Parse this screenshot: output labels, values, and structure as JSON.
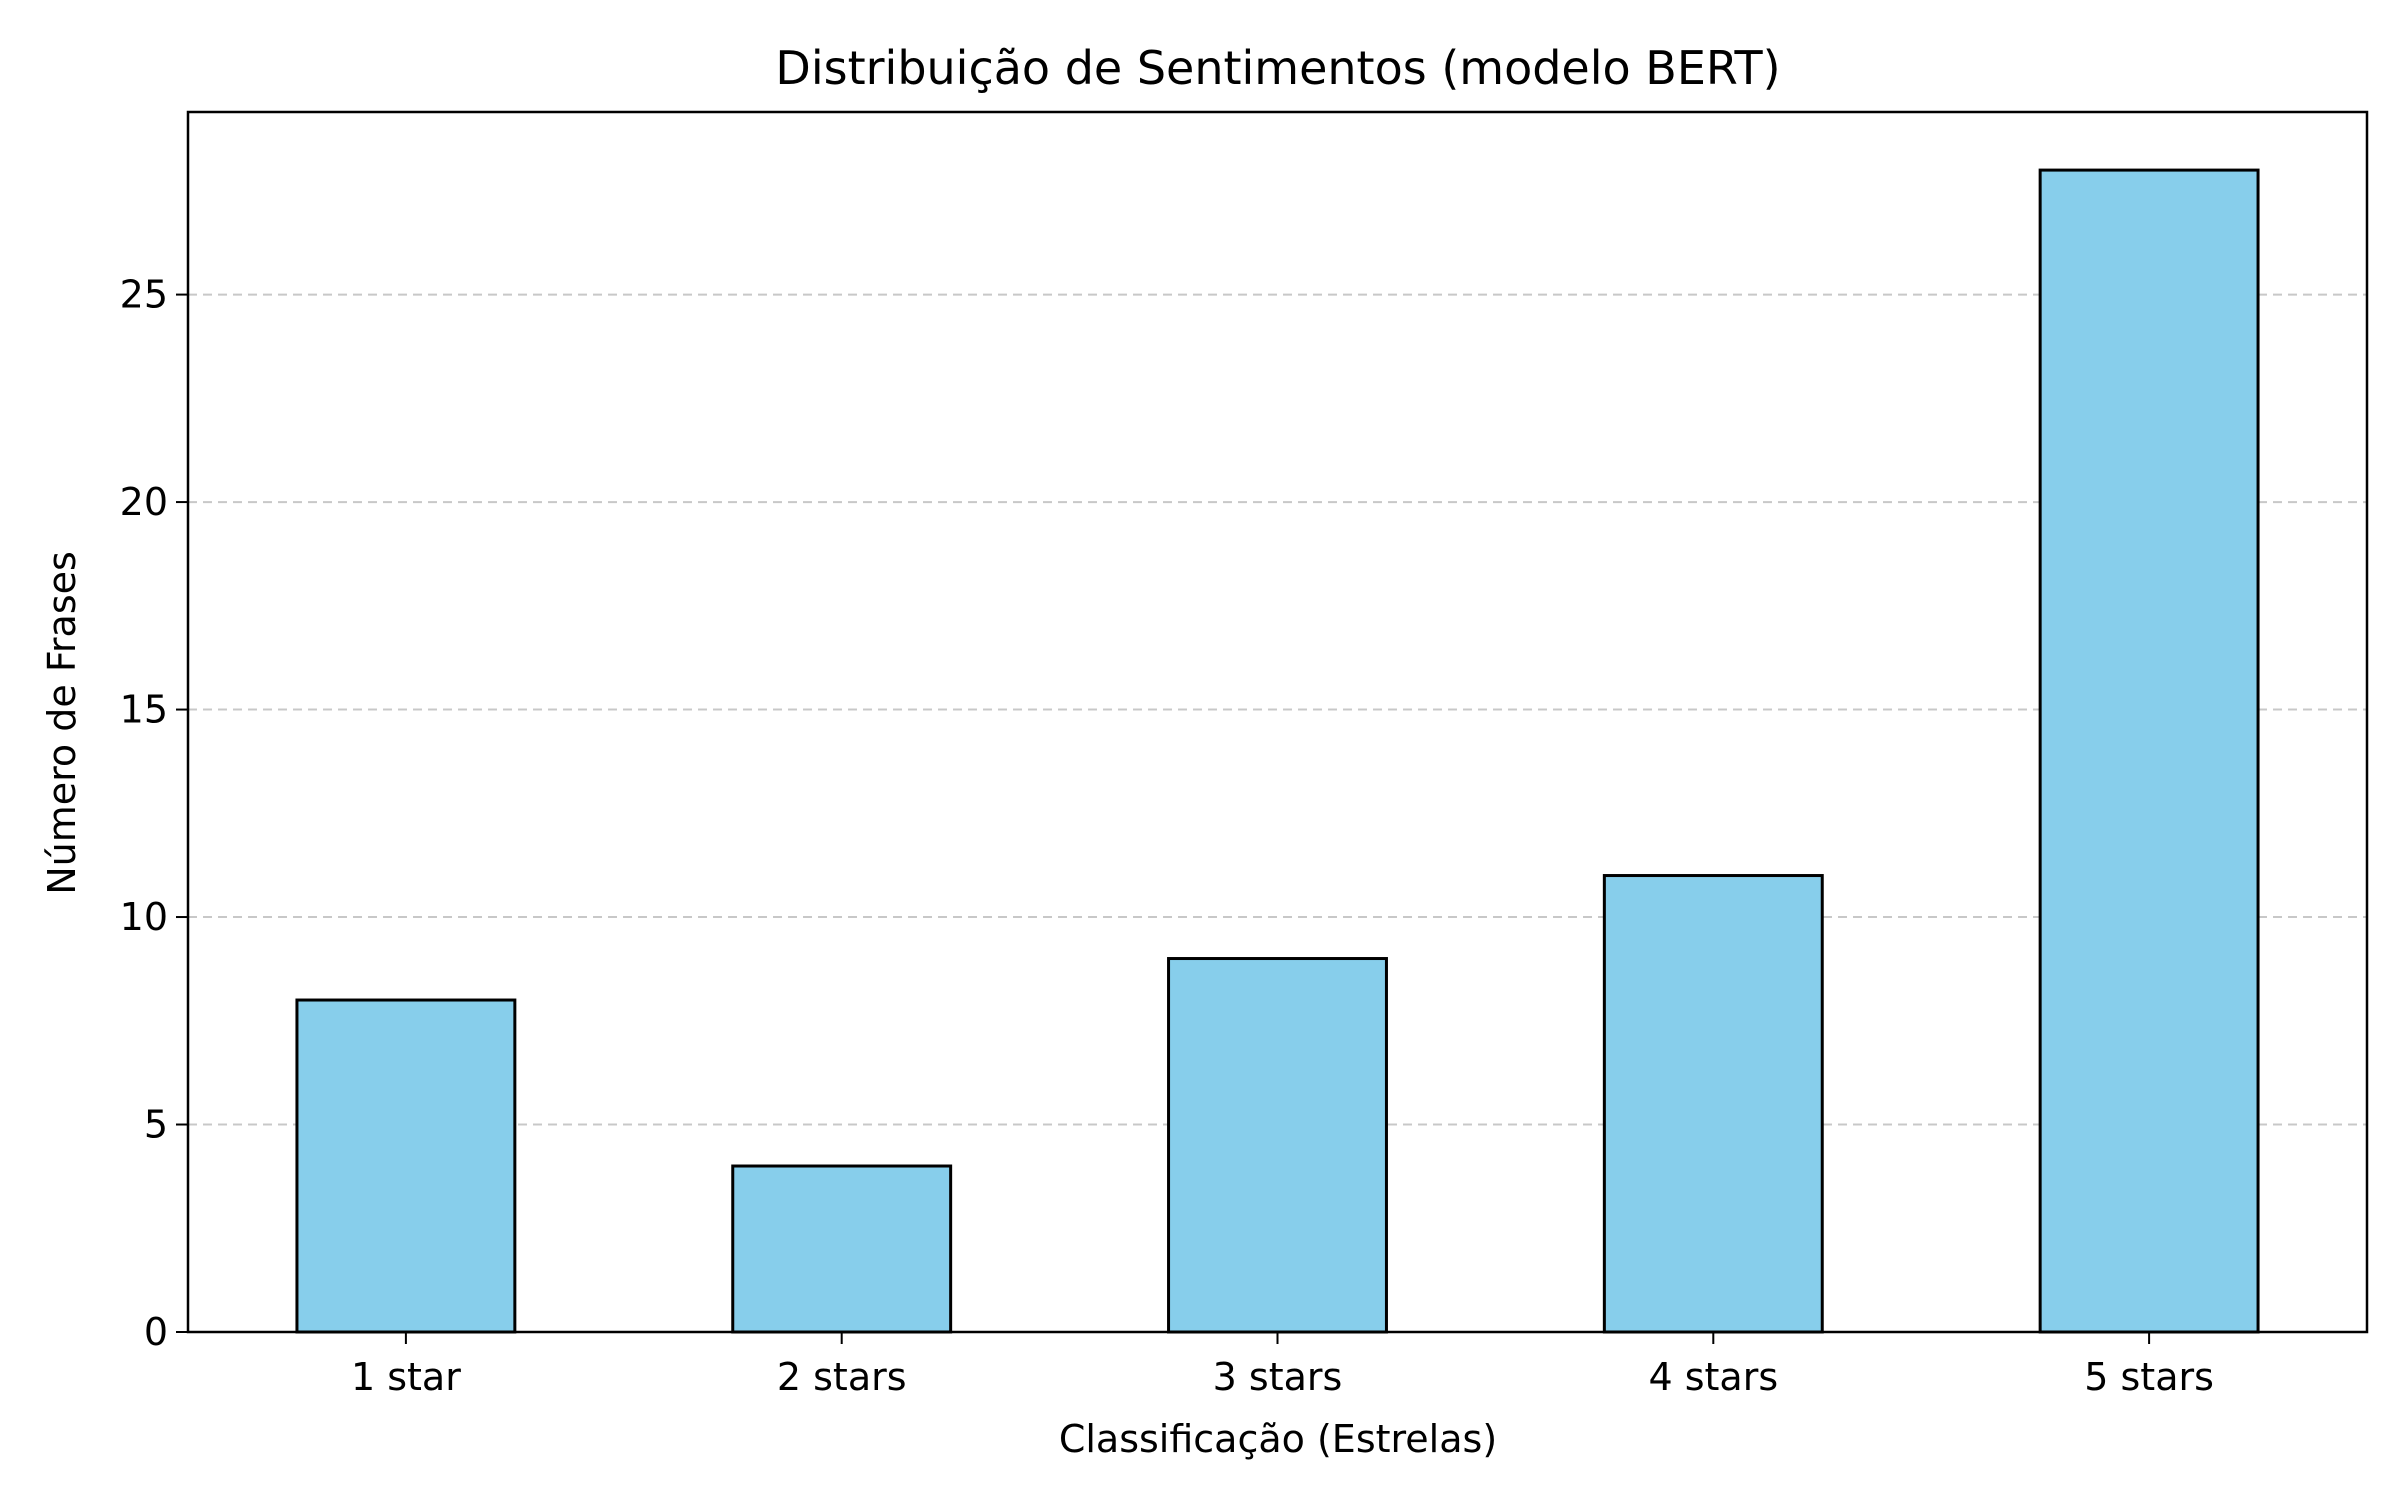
{
  "chart_data": {
    "type": "bar",
    "title": "Distribuição de Sentimentos (modelo BERT)",
    "xlabel": "Classificação (Estrelas)",
    "ylabel": "Número de Frases",
    "categories": [
      "1 star",
      "2 stars",
      "3 stars",
      "4 stars",
      "5 stars"
    ],
    "values": [
      8,
      4,
      9,
      11,
      28
    ],
    "ylim": [
      0,
      29.4
    ],
    "yticks": [
      0,
      5,
      10,
      15,
      20,
      25
    ],
    "grid": "y-dashed",
    "legend": "none",
    "colors": {
      "bar_fill": "#87ceeb",
      "bar_edge": "#000000",
      "grid": "#c8c8c8"
    }
  }
}
